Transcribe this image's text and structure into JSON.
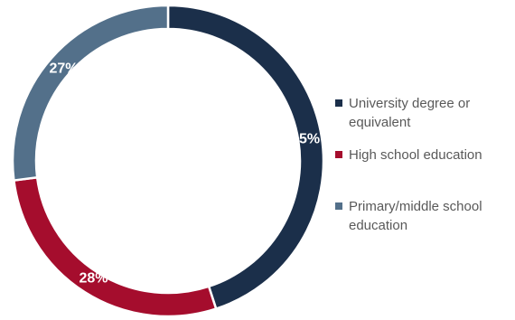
{
  "chart_data": {
    "type": "donut",
    "title": "",
    "legend_position": "right",
    "slices": [
      {
        "name": "University degree or equivalent",
        "value": 45,
        "label": "45%",
        "color": "#1b2f4a"
      },
      {
        "name": "High school education",
        "value": 28,
        "label": "28%",
        "color": "#a50d2d"
      },
      {
        "name": "Primary/middle school education",
        "value": 27,
        "label": "27%",
        "color": "#53708a"
      }
    ],
    "legend": [
      {
        "lines": [
          "University degree or",
          "equivalent"
        ],
        "color": "#1b2f4a"
      },
      {
        "lines": [
          "High school education"
        ],
        "color": "#a50d2d"
      },
      {
        "lines": [
          "Primary/middle school",
          "education"
        ],
        "color": "#53708a"
      }
    ]
  }
}
